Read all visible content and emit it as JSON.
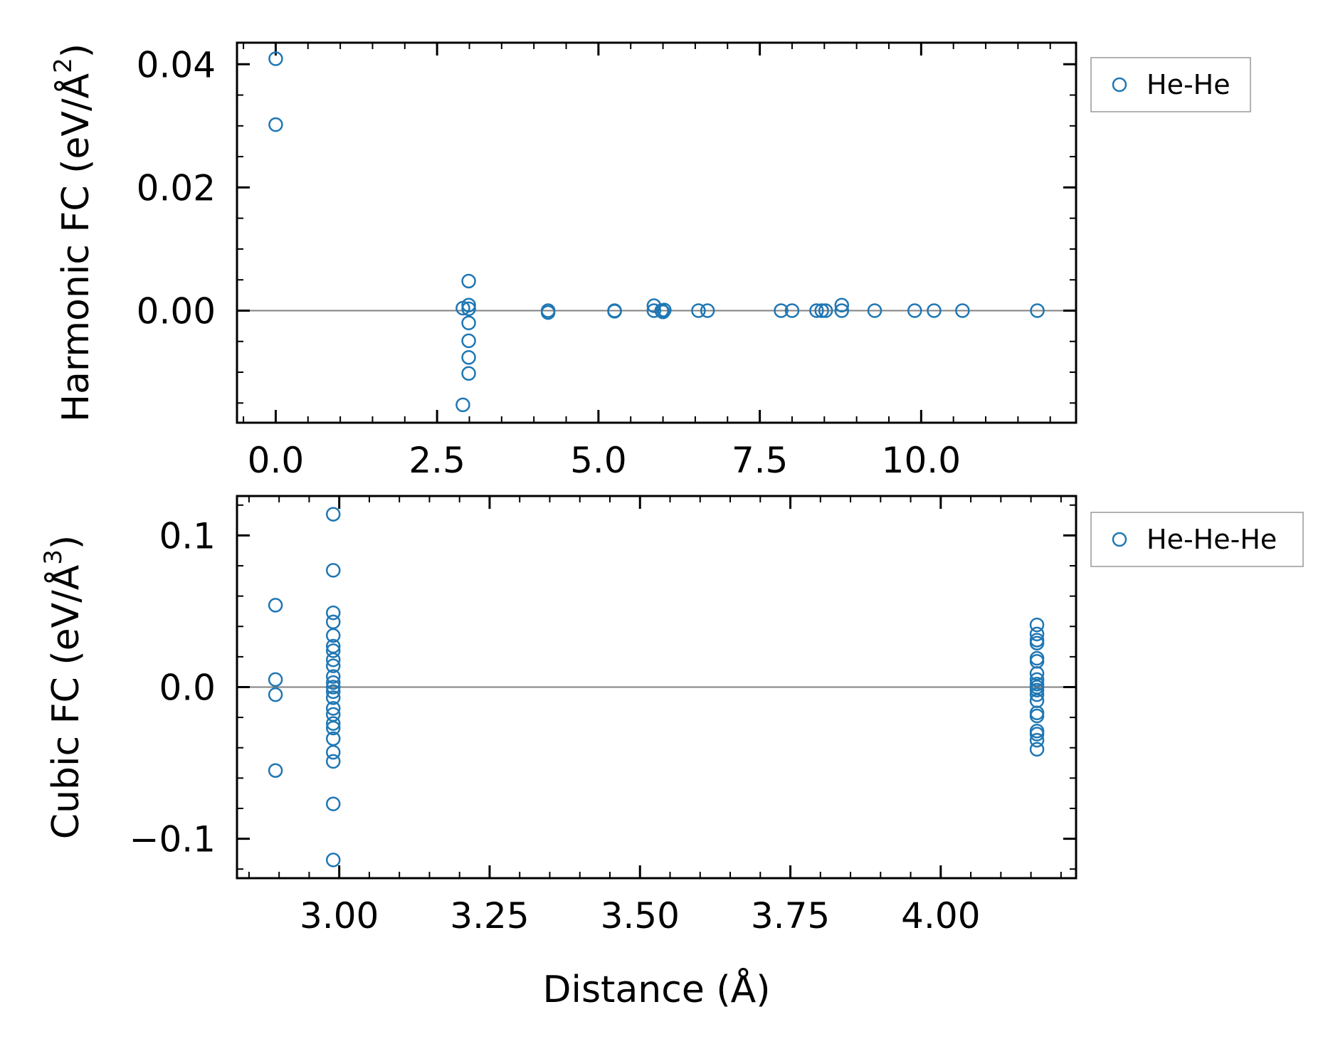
{
  "colors": {
    "marker": "#1f77b4",
    "zero_line": "#808080",
    "axes": "#000000",
    "legend_border": "#999999"
  },
  "chart_data": [
    {
      "type": "scatter",
      "ylabel_main": "Harmonic FC (eV/Å",
      "ylabel_sup": "2",
      "ylabel_close": ")",
      "xlabel": "",
      "xlim": [
        -0.6,
        12.4
      ],
      "ylim": [
        -0.0182,
        0.0435
      ],
      "xticks": [
        0.0,
        2.5,
        5.0,
        7.5,
        10.0
      ],
      "xtick_labels": [
        "0.0",
        "2.5",
        "5.0",
        "7.5",
        "10.0"
      ],
      "yticks": [
        0.0,
        0.02,
        0.04
      ],
      "ytick_labels": [
        "0.00",
        "0.02",
        "0.04"
      ],
      "x_minor_step": 0.5,
      "y_minor_step": 0.005,
      "legend": [
        "He-He"
      ],
      "series": [
        {
          "name": "He-He",
          "points": [
            [
              0.0,
              0.0409
            ],
            [
              0.0,
              0.0302
            ],
            [
              2.9,
              -0.0153
            ],
            [
              2.9,
              0.0004
            ],
            [
              2.99,
              0.0048
            ],
            [
              2.99,
              0.0009
            ],
            [
              2.99,
              0.0003
            ],
            [
              2.99,
              -0.002
            ],
            [
              2.99,
              -0.0049
            ],
            [
              2.99,
              -0.0076
            ],
            [
              2.99,
              -0.0102
            ],
            [
              4.22,
              0.0
            ],
            [
              4.22,
              -0.0003
            ],
            [
              5.25,
              0.0
            ],
            [
              5.25,
              -0.0001
            ],
            [
              5.86,
              0.0008
            ],
            [
              5.86,
              0.0
            ],
            [
              5.98,
              0.0
            ],
            [
              6.0,
              -0.0002
            ],
            [
              6.02,
              0.0001
            ],
            [
              6.55,
              0.0
            ],
            [
              6.69,
              0.0
            ],
            [
              7.83,
              0.0
            ],
            [
              8.0,
              0.0
            ],
            [
              8.38,
              0.0
            ],
            [
              8.46,
              0.0
            ],
            [
              8.52,
              0.0
            ],
            [
              8.77,
              0.0009
            ],
            [
              8.77,
              0.0
            ],
            [
              9.28,
              0.0
            ],
            [
              9.9,
              0.0
            ],
            [
              10.2,
              0.0
            ],
            [
              10.64,
              0.0
            ],
            [
              11.8,
              0.0
            ]
          ]
        }
      ]
    },
    {
      "type": "scatter",
      "ylabel_main": "Cubic FC (eV/Å",
      "ylabel_sup": "3",
      "ylabel_close": ")",
      "xlabel": "Distance (Å)",
      "xlim": [
        2.83,
        4.225
      ],
      "ylim": [
        -0.126,
        0.126
      ],
      "xticks": [
        3.0,
        3.25,
        3.5,
        3.75,
        4.0
      ],
      "xtick_labels": [
        "3.00",
        "3.25",
        "3.50",
        "3.75",
        "4.00"
      ],
      "yticks": [
        -0.1,
        0.0,
        0.1
      ],
      "ytick_labels": [
        "−0.1",
        "0.0",
        "0.1"
      ],
      "x_minor_step": 0.05,
      "y_minor_step": 0.02,
      "legend": [
        "He-He-He"
      ],
      "series": [
        {
          "name": "He-He-He",
          "points": [
            [
              2.894,
              0.054
            ],
            [
              2.894,
              0.005
            ],
            [
              2.894,
              -0.005
            ],
            [
              2.894,
              -0.055
            ],
            [
              2.99,
              0.114
            ],
            [
              2.99,
              0.077
            ],
            [
              2.99,
              0.049
            ],
            [
              2.99,
              0.043
            ],
            [
              2.99,
              0.034
            ],
            [
              2.99,
              0.027
            ],
            [
              2.99,
              0.024
            ],
            [
              2.99,
              0.018
            ],
            [
              2.99,
              0.014
            ],
            [
              2.99,
              0.007
            ],
            [
              2.99,
              0.003
            ],
            [
              2.99,
              0.0
            ],
            [
              2.99,
              -0.003
            ],
            [
              2.99,
              -0.007
            ],
            [
              2.99,
              -0.014
            ],
            [
              2.99,
              -0.018
            ],
            [
              2.99,
              -0.024
            ],
            [
              2.99,
              -0.027
            ],
            [
              2.99,
              -0.034
            ],
            [
              2.99,
              -0.043
            ],
            [
              2.99,
              -0.049
            ],
            [
              2.99,
              -0.077
            ],
            [
              2.99,
              -0.114
            ],
            [
              4.16,
              0.041
            ],
            [
              4.16,
              0.035
            ],
            [
              4.16,
              0.031
            ],
            [
              4.16,
              0.029
            ],
            [
              4.16,
              0.019
            ],
            [
              4.16,
              0.017
            ],
            [
              4.16,
              0.009
            ],
            [
              4.16,
              0.005
            ],
            [
              4.16,
              0.002
            ],
            [
              4.16,
              0.0
            ],
            [
              4.16,
              -0.002
            ],
            [
              4.16,
              -0.005
            ],
            [
              4.16,
              -0.009
            ],
            [
              4.16,
              -0.017
            ],
            [
              4.16,
              -0.019
            ],
            [
              4.16,
              -0.029
            ],
            [
              4.16,
              -0.031
            ],
            [
              4.16,
              -0.035
            ],
            [
              4.16,
              -0.041
            ]
          ]
        }
      ]
    }
  ]
}
